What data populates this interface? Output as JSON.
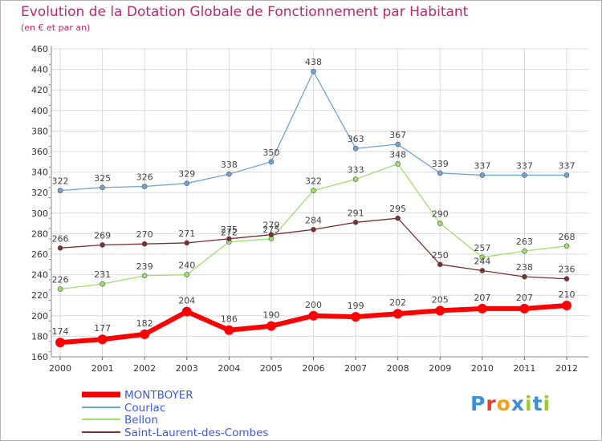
{
  "header": {
    "title": "Evolution de la Dotation Globale de Fonctionnement par Habitant",
    "subtitle": "(en € et par an)"
  },
  "logo": {
    "text": "Proxiti",
    "colors": [
      "#3d8fd9",
      "#e63c2c",
      "#f4a21d",
      "#3d8fd9",
      "#9ccc2a",
      "#3d8fd9",
      "#9ccc2a"
    ]
  },
  "chart_data": {
    "type": "line",
    "title": "Evolution de la Dotation Globale de Fonctionnement par Habitant",
    "subtitle": "(en € et par an)",
    "xlabel": "",
    "ylabel": "",
    "categories": [
      "2000",
      "2001",
      "2002",
      "2003",
      "2004",
      "2005",
      "2006",
      "2007",
      "2008",
      "2009",
      "2010",
      "2011",
      "2012"
    ],
    "ylim": [
      160,
      460
    ],
    "yticks": [
      160,
      180,
      200,
      220,
      240,
      260,
      280,
      300,
      320,
      340,
      360,
      380,
      400,
      420,
      440,
      460
    ],
    "grid": true,
    "legend_position": "bottom-left",
    "series": [
      {
        "name": "MONTBOYER",
        "color": "#ff0000",
        "values": [
          174,
          177,
          182,
          204,
          186,
          190,
          200,
          199,
          202,
          205,
          207,
          207,
          210
        ]
      },
      {
        "name": "Courlac",
        "color": "#6fa4d4",
        "values": [
          322,
          325,
          326,
          329,
          338,
          350,
          438,
          363,
          367,
          339,
          337,
          337,
          337
        ]
      },
      {
        "name": "Bellon",
        "color": "#9ee06a",
        "values": [
          226,
          231,
          239,
          240,
          272,
          275,
          322,
          333,
          348,
          290,
          257,
          263,
          268
        ]
      },
      {
        "name": "Saint-Laurent-des-Combes",
        "color": "#7b2f2f",
        "values": [
          266,
          269,
          270,
          271,
          275,
          279,
          284,
          291,
          295,
          250,
          244,
          238,
          236
        ]
      }
    ]
  }
}
